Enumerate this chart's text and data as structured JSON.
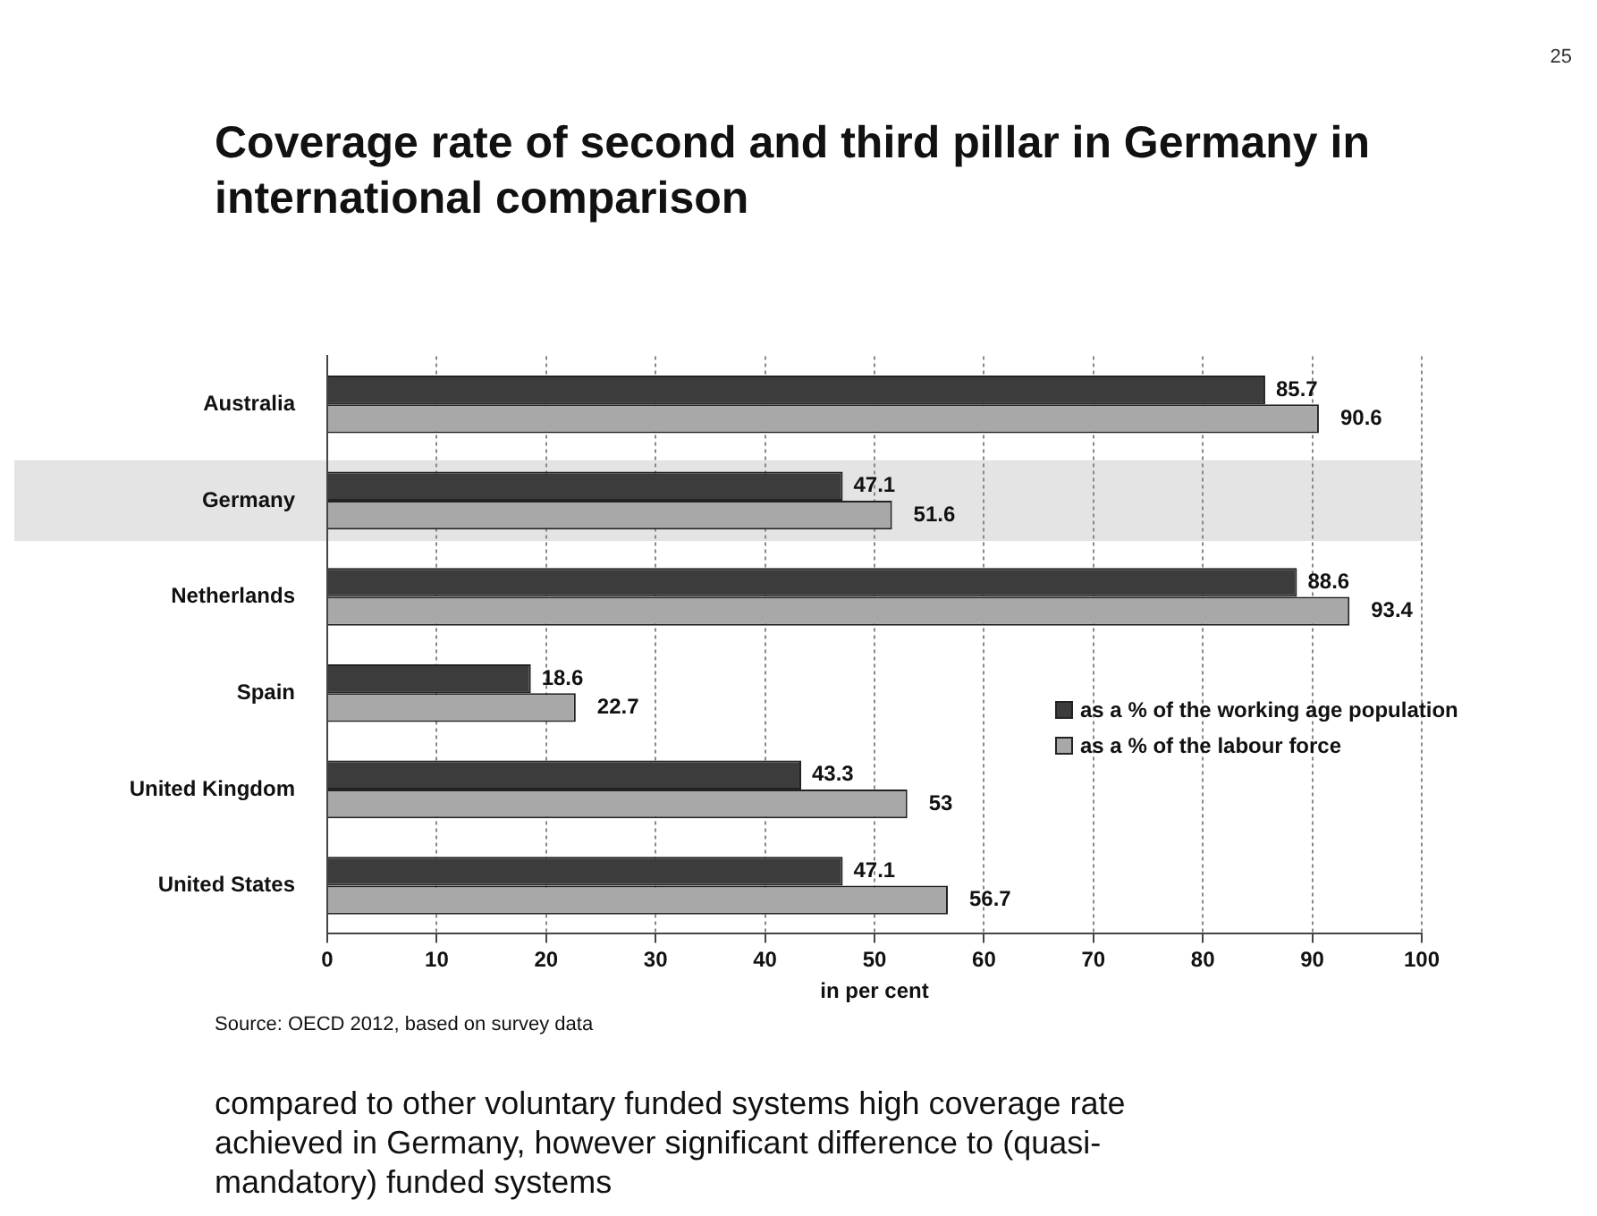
{
  "chart_data": {
    "type": "bar",
    "orientation": "horizontal",
    "title": "Coverage rate of second and third pillar in Germany in international comparison",
    "xlabel": "in per cent",
    "categories": [
      "Australia",
      "Germany",
      "Netherlands",
      "Spain",
      "United Kingdom",
      "United States"
    ],
    "series": [
      {
        "name": "as a % of the working age population",
        "color": "#3c3c3c",
        "values": [
          85.7,
          47.1,
          88.6,
          18.6,
          43.3,
          47.1
        ]
      },
      {
        "name": "as a % of the labour force",
        "color": "#a8a8a8",
        "values": [
          90.6,
          51.6,
          93.4,
          22.7,
          53,
          56.7
        ]
      }
    ],
    "xlim": [
      0,
      100
    ],
    "xticks": [
      0,
      10,
      20,
      30,
      40,
      50,
      60,
      70,
      80,
      90,
      100
    ],
    "grid": "x",
    "legend": "right",
    "data_labels": true,
    "bands": [
      {
        "axis": "y",
        "from": "Germany",
        "to": "Germany",
        "color": "#e4e4e4"
      }
    ],
    "annotations": [
      "Source: OECD 2012, based on survey data",
      "compared to other voluntary funded systems high coverage rate achieved in Germany, however significant difference to (quasi-mandatory) funded systems",
      "25"
    ]
  }
}
